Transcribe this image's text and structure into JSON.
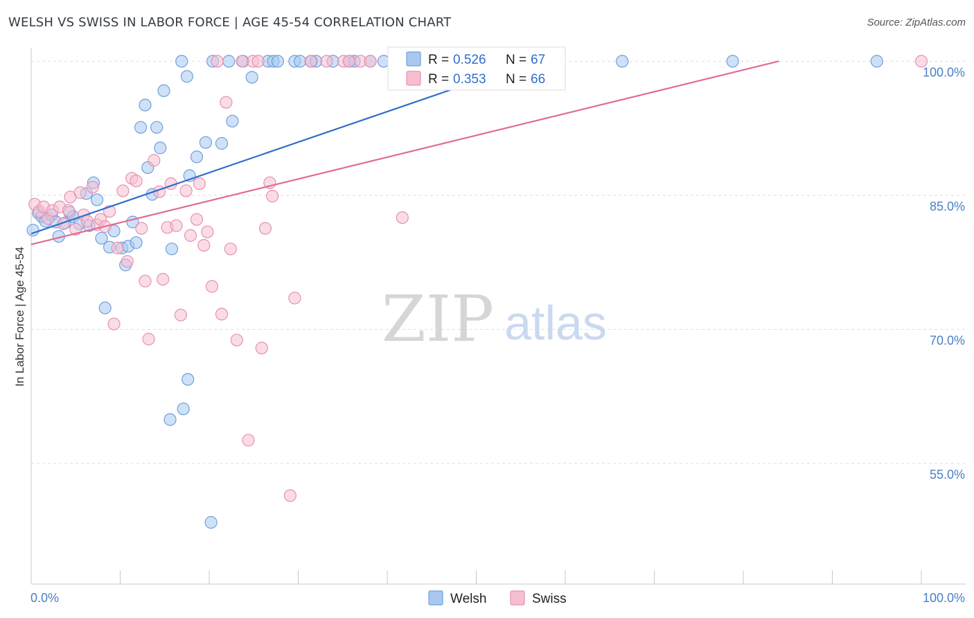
{
  "header": {
    "title": "WELSH VS SWISS IN LABOR FORCE | AGE 45-54 CORRELATION CHART",
    "source": "Source: ZipAtlas.com"
  },
  "watermark": {
    "zip": "ZIP",
    "atlas": "atlas"
  },
  "colors": {
    "welsh_fill": "#a8c8f0",
    "welsh_stroke": "#6f9fdc",
    "welsh_line": "#2f6fca",
    "swiss_fill": "#f6bfd1",
    "swiss_stroke": "#e890b0",
    "swiss_line": "#e06a97",
    "tick_text": "#4a7fc8",
    "grid": "#dddddd"
  },
  "chart_data": {
    "type": "scatter",
    "title": "WELSH VS SWISS IN LABOR FORCE | AGE 45-54 CORRELATION CHART",
    "xlabel": "",
    "ylabel": "In Labor Force | Age 45-54",
    "xlim": [
      0,
      100
    ],
    "ylim": [
      41.5,
      101.5
    ],
    "x_tick_labels": [
      "0.0%",
      "100.0%"
    ],
    "y_ticks": [
      {
        "value": 100,
        "label": "100.0%"
      },
      {
        "value": 85,
        "label": "85.0%"
      },
      {
        "value": 70,
        "label": "70.0%"
      },
      {
        "value": 55,
        "label": "55.0%"
      }
    ],
    "grid": true,
    "legend_position": "top-center",
    "series": [
      {
        "name": "Welsh",
        "legend_r_label": "R =",
        "legend_r_value": "0.526",
        "legend_n_label": "N =",
        "legend_n_value": "67",
        "trend": {
          "x": [
            0,
            56.5
          ],
          "y": [
            80.7,
            100.0
          ]
        },
        "points": [
          {
            "x": 0.2,
            "y": 81.1
          },
          {
            "x": 0.8,
            "y": 83.0
          },
          {
            "x": 1.2,
            "y": 82.6
          },
          {
            "x": 1.6,
            "y": 82.1
          },
          {
            "x": 2.3,
            "y": 82.8
          },
          {
            "x": 2.8,
            "y": 82.0
          },
          {
            "x": 3.1,
            "y": 80.4
          },
          {
            "x": 3.8,
            "y": 81.9
          },
          {
            "x": 4.3,
            "y": 83.1
          },
          {
            "x": 4.7,
            "y": 82.6
          },
          {
            "x": 5.4,
            "y": 81.8
          },
          {
            "x": 6.2,
            "y": 85.2
          },
          {
            "x": 6.5,
            "y": 81.6
          },
          {
            "x": 7.0,
            "y": 86.4
          },
          {
            "x": 7.4,
            "y": 84.5
          },
          {
            "x": 7.9,
            "y": 80.2
          },
          {
            "x": 8.8,
            "y": 79.2
          },
          {
            "x": 9.3,
            "y": 81.0
          },
          {
            "x": 10.2,
            "y": 79.1
          },
          {
            "x": 10.6,
            "y": 77.2
          },
          {
            "x": 10.9,
            "y": 79.3
          },
          {
            "x": 11.4,
            "y": 82.0
          },
          {
            "x": 11.8,
            "y": 79.7
          },
          {
            "x": 12.3,
            "y": 92.6
          },
          {
            "x": 12.8,
            "y": 95.1
          },
          {
            "x": 13.1,
            "y": 88.1
          },
          {
            "x": 13.6,
            "y": 85.1
          },
          {
            "x": 14.1,
            "y": 92.6
          },
          {
            "x": 14.5,
            "y": 90.3
          },
          {
            "x": 14.9,
            "y": 96.7
          },
          {
            "x": 15.8,
            "y": 79.0
          },
          {
            "x": 16.9,
            "y": 100.0
          },
          {
            "x": 17.5,
            "y": 98.3
          },
          {
            "x": 17.8,
            "y": 87.2
          },
          {
            "x": 18.6,
            "y": 89.3
          },
          {
            "x": 19.6,
            "y": 90.9
          },
          {
            "x": 20.4,
            "y": 100.0
          },
          {
            "x": 21.4,
            "y": 90.8
          },
          {
            "x": 22.2,
            "y": 100.0
          },
          {
            "x": 22.6,
            "y": 93.3
          },
          {
            "x": 23.8,
            "y": 100.0
          },
          {
            "x": 24.8,
            "y": 98.2
          },
          {
            "x": 26.6,
            "y": 100.0
          },
          {
            "x": 27.2,
            "y": 100.0
          },
          {
            "x": 27.7,
            "y": 100.0
          },
          {
            "x": 29.6,
            "y": 100.0
          },
          {
            "x": 30.2,
            "y": 100.0
          },
          {
            "x": 31.5,
            "y": 100.0
          },
          {
            "x": 32.0,
            "y": 100.0
          },
          {
            "x": 33.9,
            "y": 100.0
          },
          {
            "x": 35.8,
            "y": 100.0
          },
          {
            "x": 36.3,
            "y": 100.0
          },
          {
            "x": 38.1,
            "y": 100.0
          },
          {
            "x": 39.6,
            "y": 100.0
          },
          {
            "x": 41.8,
            "y": 100.0
          },
          {
            "x": 43.2,
            "y": 100.0
          },
          {
            "x": 45.2,
            "y": 100.0
          },
          {
            "x": 47.6,
            "y": 100.0
          },
          {
            "x": 58.8,
            "y": 100.0
          },
          {
            "x": 66.4,
            "y": 100.0
          },
          {
            "x": 78.8,
            "y": 100.0
          },
          {
            "x": 95.0,
            "y": 100.0
          },
          {
            "x": 8.3,
            "y": 72.4
          },
          {
            "x": 17.6,
            "y": 64.4
          },
          {
            "x": 17.1,
            "y": 61.1
          },
          {
            "x": 15.6,
            "y": 59.9
          },
          {
            "x": 20.2,
            "y": 48.4
          }
        ]
      },
      {
        "name": "Swiss",
        "legend_r_label": "R =",
        "legend_r_value": "0.353",
        "legend_n_label": "N =",
        "legend_n_value": "66",
        "trend": {
          "x": [
            0,
            84.0
          ],
          "y": [
            79.5,
            100.0
          ]
        },
        "points": [
          {
            "x": 0.4,
            "y": 84.0
          },
          {
            "x": 0.9,
            "y": 83.2
          },
          {
            "x": 1.4,
            "y": 83.7
          },
          {
            "x": 1.9,
            "y": 82.4
          },
          {
            "x": 2.4,
            "y": 83.3
          },
          {
            "x": 3.2,
            "y": 83.7
          },
          {
            "x": 3.6,
            "y": 81.8
          },
          {
            "x": 4.2,
            "y": 83.3
          },
          {
            "x": 4.4,
            "y": 84.8
          },
          {
            "x": 5.0,
            "y": 81.2
          },
          {
            "x": 5.5,
            "y": 85.3
          },
          {
            "x": 5.9,
            "y": 82.8
          },
          {
            "x": 6.3,
            "y": 82.1
          },
          {
            "x": 6.9,
            "y": 85.9
          },
          {
            "x": 7.4,
            "y": 81.7
          },
          {
            "x": 7.8,
            "y": 82.3
          },
          {
            "x": 8.3,
            "y": 81.5
          },
          {
            "x": 8.8,
            "y": 83.2
          },
          {
            "x": 9.3,
            "y": 70.6
          },
          {
            "x": 9.7,
            "y": 79.1
          },
          {
            "x": 10.3,
            "y": 85.5
          },
          {
            "x": 10.8,
            "y": 77.6
          },
          {
            "x": 11.3,
            "y": 86.9
          },
          {
            "x": 11.8,
            "y": 86.6
          },
          {
            "x": 12.4,
            "y": 81.3
          },
          {
            "x": 12.8,
            "y": 75.4
          },
          {
            "x": 13.2,
            "y": 68.9
          },
          {
            "x": 13.8,
            "y": 88.9
          },
          {
            "x": 14.4,
            "y": 85.4
          },
          {
            "x": 14.8,
            "y": 75.6
          },
          {
            "x": 15.3,
            "y": 81.4
          },
          {
            "x": 15.7,
            "y": 86.3
          },
          {
            "x": 16.3,
            "y": 81.6
          },
          {
            "x": 16.8,
            "y": 71.6
          },
          {
            "x": 17.4,
            "y": 85.5
          },
          {
            "x": 17.9,
            "y": 80.5
          },
          {
            "x": 18.6,
            "y": 82.3
          },
          {
            "x": 18.9,
            "y": 86.3
          },
          {
            "x": 19.4,
            "y": 79.4
          },
          {
            "x": 19.8,
            "y": 80.9
          },
          {
            "x": 20.3,
            "y": 74.8
          },
          {
            "x": 20.9,
            "y": 100.0
          },
          {
            "x": 21.4,
            "y": 71.7
          },
          {
            "x": 21.9,
            "y": 95.4
          },
          {
            "x": 22.4,
            "y": 79.0
          },
          {
            "x": 23.1,
            "y": 68.8
          },
          {
            "x": 23.7,
            "y": 100.0
          },
          {
            "x": 24.4,
            "y": 57.6
          },
          {
            "x": 24.9,
            "y": 100.0
          },
          {
            "x": 25.5,
            "y": 100.0
          },
          {
            "x": 25.9,
            "y": 67.9
          },
          {
            "x": 26.3,
            "y": 81.3
          },
          {
            "x": 26.8,
            "y": 86.4
          },
          {
            "x": 27.1,
            "y": 84.9
          },
          {
            "x": 29.1,
            "y": 51.4
          },
          {
            "x": 29.6,
            "y": 73.5
          },
          {
            "x": 31.4,
            "y": 100.0
          },
          {
            "x": 33.2,
            "y": 100.0
          },
          {
            "x": 35.1,
            "y": 100.0
          },
          {
            "x": 35.7,
            "y": 100.0
          },
          {
            "x": 37.0,
            "y": 100.0
          },
          {
            "x": 38.1,
            "y": 100.0
          },
          {
            "x": 41.7,
            "y": 82.5
          },
          {
            "x": 44.2,
            "y": 100.0
          },
          {
            "x": 53.0,
            "y": 100.0
          },
          {
            "x": 100.0,
            "y": 100.0
          }
        ]
      }
    ]
  }
}
